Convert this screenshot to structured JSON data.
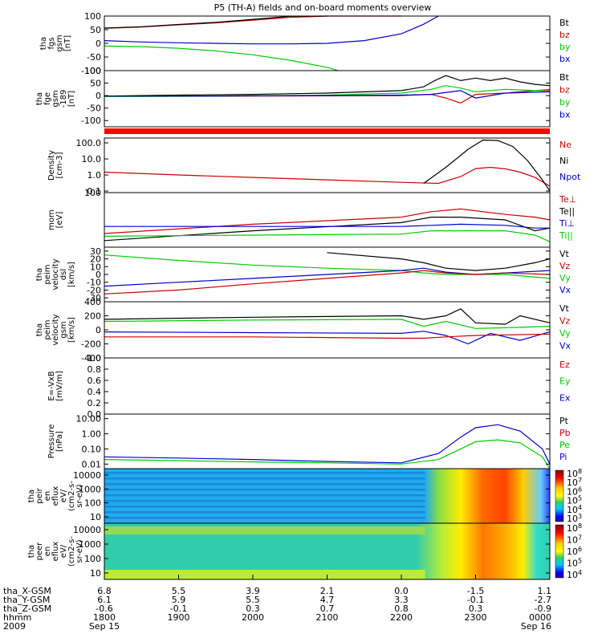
{
  "title": "P5 (TH-A) fields and on-board moments overview",
  "colors": {
    "black": "#000000",
    "red": "#cc0000",
    "green": "#00cc00",
    "blue": "#0000cc",
    "bright_red": "#ff0000"
  },
  "chart_data": [
    {
      "type": "line",
      "name": "fgs-gsm",
      "ylabel_lines": [
        "tha",
        "fgs",
        "gsm",
        "[nT]"
      ],
      "yticks": [
        "100",
        "50",
        "0",
        "-50",
        "-100"
      ],
      "ylim": [
        -100,
        100
      ],
      "legend": [
        {
          "label": "Bt",
          "color": "#000000"
        },
        {
          "label": "bz",
          "color": "#cc0000"
        },
        {
          "label": "by",
          "color": "#00cc00"
        },
        {
          "label": "bx",
          "color": "#0000cc"
        }
      ],
      "series": [
        {
          "color": "#cc0000",
          "x": [
            18.0,
            18.5,
            19.0,
            19.5,
            20.0,
            20.5,
            21.0,
            21.5,
            22.0
          ],
          "y": [
            55,
            60,
            68,
            75,
            85,
            95,
            108,
            125,
            150
          ]
        },
        {
          "color": "#000000",
          "x": [
            18.0,
            18.5,
            19.0,
            19.5,
            20.0,
            20.5,
            21.0
          ],
          "y": [
            56,
            61,
            69,
            77,
            88,
            99,
            112
          ]
        },
        {
          "color": "#0000cc",
          "x": [
            18.0,
            18.5,
            19.0,
            19.5,
            20.0,
            20.5,
            21.0,
            21.5,
            22.0,
            22.3,
            22.5
          ],
          "y": [
            10,
            5,
            2,
            0,
            -2,
            -2,
            0,
            10,
            35,
            70,
            110
          ]
        },
        {
          "color": "#00cc00",
          "x": [
            18.0,
            18.5,
            19.0,
            19.5,
            20.0,
            20.5,
            21.0,
            21.15
          ],
          "y": [
            -10,
            -12,
            -18,
            -28,
            -42,
            -62,
            -88,
            -100
          ]
        }
      ]
    },
    {
      "type": "line",
      "name": "fge-gsm",
      "ylabel_lines": [
        "tha",
        "fge",
        "gsm",
        "-189",
        "[nT]"
      ],
      "yticks": [
        "100",
        "50",
        "0",
        "-50",
        "-100"
      ],
      "ylim": [
        -125,
        100
      ],
      "legend": [
        {
          "label": "Bt",
          "color": "#000000"
        },
        {
          "label": "bz",
          "color": "#cc0000"
        },
        {
          "label": "by",
          "color": "#00cc00"
        },
        {
          "label": "bx",
          "color": "#0000cc"
        }
      ],
      "series": [
        {
          "color": "#000000",
          "x": [
            18.0,
            19.0,
            20.0,
            21.0,
            22.0,
            22.3,
            22.45,
            22.6,
            22.8,
            23.0,
            23.2,
            23.4,
            23.6,
            23.8,
            24.0
          ],
          "y": [
            -2,
            2,
            5,
            10,
            20,
            35,
            60,
            80,
            60,
            70,
            60,
            70,
            55,
            45,
            40
          ]
        },
        {
          "color": "#cc0000",
          "x": [
            18.0,
            19.0,
            20.0,
            21.0,
            22.0,
            22.4,
            22.6,
            22.8,
            23.0,
            23.4,
            23.8,
            24.0
          ],
          "y": [
            -3,
            -3,
            -2,
            -1,
            0,
            5,
            -10,
            -30,
            5,
            10,
            20,
            20
          ]
        },
        {
          "color": "#00cc00",
          "x": [
            18.0,
            19.0,
            20.0,
            21.0,
            22.0,
            22.4,
            22.6,
            22.8,
            23.0,
            23.4,
            23.8,
            24.0
          ],
          "y": [
            -4,
            -3,
            -1,
            2,
            10,
            25,
            40,
            30,
            15,
            25,
            20,
            25
          ]
        },
        {
          "color": "#0000cc",
          "x": [
            18.0,
            19.0,
            20.0,
            21.0,
            22.0,
            22.4,
            22.8,
            23.0,
            23.4,
            24.0
          ],
          "y": [
            -2,
            -2,
            -1,
            0,
            2,
            5,
            20,
            -10,
            10,
            15
          ]
        }
      ]
    },
    {
      "type": "line",
      "name": "density",
      "yscale": "log",
      "ylabel_lines": [
        "Density",
        "[cm-3]"
      ],
      "yticks": [
        "100.0",
        "10.0",
        "1.0",
        "0.1"
      ],
      "ylim": [
        0.08,
        200
      ],
      "legend": [
        {
          "label": "Ne",
          "color": "#cc0000"
        },
        {
          "label": "Ni",
          "color": "#000000"
        },
        {
          "label": "Npot",
          "color": "#0000cc"
        }
      ],
      "series": [
        {
          "color": "#cc0000",
          "x": [
            18.0,
            19.0,
            20.0,
            21.0,
            22.0,
            22.5,
            22.8,
            23.0,
            23.2,
            23.4,
            23.6,
            23.8,
            24.0
          ],
          "y": [
            1.5,
            1.0,
            0.7,
            0.5,
            0.35,
            0.3,
            0.8,
            2.5,
            3.0,
            2.4,
            1.5,
            0.7,
            0.2
          ]
        },
        {
          "color": "#000000",
          "x": [
            22.3,
            22.6,
            22.9,
            23.1,
            23.3,
            23.5,
            23.7,
            23.9,
            24.0
          ],
          "y": [
            0.3,
            3,
            40,
            150,
            140,
            60,
            8,
            0.5,
            0.1
          ]
        }
      ]
    },
    {
      "type": "line",
      "name": "mom-temperature",
      "ylabel_lines": [
        "mom",
        "[eV]"
      ],
      "yticks": [
        "100"
      ],
      "ylim": [
        0,
        1
      ],
      "legend": [
        {
          "label": "Te⊥",
          "color": "#cc0000"
        },
        {
          "label": "Te||",
          "color": "#000000"
        },
        {
          "label": "Ti⊥",
          "color": "#0000cc"
        },
        {
          "label": "Ti||",
          "color": "#00cc00"
        }
      ],
      "series": [
        {
          "color": "#cc0000",
          "x": [
            18.0,
            20.0,
            22.0,
            22.4,
            22.8,
            23.4,
            23.8,
            24.0
          ],
          "y": [
            0.25,
            0.42,
            0.55,
            0.65,
            0.7,
            0.6,
            0.55,
            0.5
          ]
        },
        {
          "color": "#000000",
          "x": [
            18.0,
            20.0,
            22.0,
            22.4,
            22.8,
            23.4,
            23.8,
            24.0
          ],
          "y": [
            0.12,
            0.3,
            0.45,
            0.55,
            0.55,
            0.5,
            0.3,
            0.35
          ]
        },
        {
          "color": "#0000cc",
          "x": [
            18.0,
            20.0,
            22.0,
            22.4,
            22.8,
            23.4,
            23.8,
            24.0
          ],
          "y": [
            0.38,
            0.38,
            0.38,
            0.4,
            0.42,
            0.4,
            0.35,
            0.35
          ]
        },
        {
          "color": "#00cc00",
          "x": [
            18.0,
            20.0,
            22.0,
            22.4,
            22.8,
            23.4,
            23.8,
            24.0
          ],
          "y": [
            0.2,
            0.22,
            0.24,
            0.3,
            0.3,
            0.3,
            0.22,
            0.1
          ]
        }
      ]
    },
    {
      "type": "line",
      "name": "peim-velocity-dsl",
      "ylabel_lines": [
        "tha",
        "peim",
        "velocity",
        "dsl",
        "[km/s]"
      ],
      "yticks": [
        "30",
        "20",
        "10",
        "0",
        "-10",
        "-20",
        "-30"
      ],
      "ylim": [
        -35,
        35
      ],
      "legend": [
        {
          "label": "Vt",
          "color": "#000000"
        },
        {
          "label": "Vz",
          "color": "#cc0000"
        },
        {
          "label": "Vy",
          "color": "#00cc00"
        },
        {
          "label": "Vx",
          "color": "#0000cc"
        }
      ],
      "series": [
        {
          "color": "#000000",
          "x": [
            21.0,
            22.0,
            22.3,
            22.6,
            23.0,
            23.4,
            23.8,
            24.0
          ],
          "y": [
            28,
            20,
            15,
            8,
            5,
            8,
            15,
            20
          ]
        },
        {
          "color": "#00cc00",
          "x": [
            18.0,
            19.0,
            20.0,
            21.0,
            22.0,
            22.3,
            22.6,
            23.0,
            23.4,
            24.0
          ],
          "y": [
            25,
            18,
            12,
            8,
            5,
            2,
            0,
            0,
            0,
            -5
          ]
        },
        {
          "color": "#0000cc",
          "x": [
            18.0,
            19.0,
            20.0,
            21.0,
            22.0,
            22.3,
            22.6,
            23.0,
            23.4,
            24.0
          ],
          "y": [
            -15,
            -10,
            -5,
            0,
            5,
            8,
            3,
            0,
            2,
            5
          ]
        },
        {
          "color": "#cc0000",
          "x": [
            18.0,
            19.0,
            20.0,
            21.0,
            22.0,
            22.3,
            22.6,
            23.0,
            23.4,
            24.0
          ],
          "y": [
            -25,
            -20,
            -12,
            -5,
            2,
            5,
            2,
            0,
            2,
            0
          ]
        }
      ]
    },
    {
      "type": "line",
      "name": "peim-velocity-gsm",
      "ylabel_lines": [
        "tha",
        "peim",
        "velocity",
        "gsm",
        "[km/s]"
      ],
      "yticks": [
        "400",
        "200",
        "0",
        "-200",
        "-400"
      ],
      "ylim": [
        -400,
        400
      ],
      "legend": [
        {
          "label": "Vt",
          "color": "#000000"
        },
        {
          "label": "Vz",
          "color": "#cc0000"
        },
        {
          "label": "Vy",
          "color": "#00cc00"
        },
        {
          "label": "Vx",
          "color": "#0000cc"
        }
      ],
      "series": [
        {
          "color": "#000000",
          "x": [
            18.0,
            20.0,
            22.0,
            22.3,
            22.6,
            22.8,
            23.0,
            23.4,
            23.6,
            24.0
          ],
          "y": [
            150,
            180,
            200,
            150,
            200,
            300,
            100,
            80,
            200,
            100
          ]
        },
        {
          "color": "#00cc00",
          "x": [
            18.0,
            20.0,
            22.0,
            22.3,
            22.6,
            23.0,
            23.4,
            24.0
          ],
          "y": [
            120,
            140,
            150,
            50,
            120,
            20,
            30,
            50
          ]
        },
        {
          "color": "#0000cc",
          "x": [
            18.0,
            20.0,
            22.0,
            22.3,
            22.6,
            22.9,
            23.2,
            23.6,
            24.0
          ],
          "y": [
            -30,
            -40,
            -50,
            -20,
            -80,
            -200,
            -50,
            -150,
            -30
          ]
        },
        {
          "color": "#cc0000",
          "x": [
            18.0,
            20.0,
            22.0,
            22.3,
            22.6,
            23.0,
            24.0
          ],
          "y": [
            -100,
            -100,
            -120,
            -120,
            -100,
            -80,
            -60
          ]
        }
      ]
    },
    {
      "type": "line",
      "name": "e-field",
      "ylabel_lines": [
        "E=-VxB",
        "[mV/m]"
      ],
      "yticks": [
        "1.0",
        "0.8",
        "0.6",
        "0.4",
        "0.2",
        "0.0"
      ],
      "ylim": [
        0,
        1
      ],
      "legend": [
        {
          "label": "Ez",
          "color": "#cc0000"
        },
        {
          "label": "Ey",
          "color": "#00cc00"
        },
        {
          "label": "Ex",
          "color": "#0000cc"
        }
      ],
      "series": []
    },
    {
      "type": "line",
      "name": "pressure",
      "yscale": "log",
      "ylabel_lines": [
        "Pressure",
        "[nPa]"
      ],
      "yticks": [
        "10.00",
        "1.00",
        "0.10",
        "0.01"
      ],
      "ylim": [
        0.005,
        20
      ],
      "legend": [
        {
          "label": "Pt",
          "color": "#000000"
        },
        {
          "label": "Pb",
          "color": "#cc0000"
        },
        {
          "label": "Pe",
          "color": "#00cc00"
        },
        {
          "label": "Pi",
          "color": "#0000cc"
        }
      ],
      "series": [
        {
          "color": "#0000cc",
          "x": [
            18.0,
            19.0,
            20.0,
            21.0,
            22.0,
            22.5,
            22.8,
            23.0,
            23.3,
            23.6,
            23.9,
            24.0
          ],
          "y": [
            0.03,
            0.025,
            0.02,
            0.015,
            0.012,
            0.05,
            0.6,
            2.5,
            4,
            1.5,
            0.1,
            0.01
          ]
        },
        {
          "color": "#00cc00",
          "x": [
            18.0,
            19.0,
            20.0,
            21.0,
            22.0,
            22.5,
            22.8,
            23.0,
            23.3,
            23.6,
            23.9,
            24.0
          ],
          "y": [
            0.02,
            0.017,
            0.014,
            0.012,
            0.01,
            0.02,
            0.1,
            0.3,
            0.4,
            0.25,
            0.03,
            0.005
          ]
        }
      ]
    },
    {
      "type": "heatmap",
      "name": "peir-en-eflux",
      "ylabel_lines": [
        "tha",
        "peir",
        "en",
        "eflux",
        "eV/",
        "(cm2-s-",
        "sr-eV)"
      ],
      "yticks": [
        "10000",
        "1000",
        "100",
        "10"
      ],
      "colorbar_labels": [
        "10^8",
        "10^7",
        "10^6",
        "10^5",
        "10^4",
        "10^3"
      ]
    },
    {
      "type": "heatmap",
      "name": "peer-en-eflux",
      "ylabel_lines": [
        "tha",
        "peer",
        "en",
        "eflux",
        "eV/",
        "(cm2-s-",
        "sr-eV)"
      ],
      "yticks": [
        "10000",
        "1000",
        "100",
        "10"
      ],
      "colorbar_labels": [
        "10^8",
        "10^7",
        "10^6",
        "10^5",
        "10^4"
      ]
    }
  ],
  "xaxis": {
    "row_labels": [
      "tha_X-GSM",
      "tha_Y-GSM",
      "tha_Z-GSM",
      "hhmm",
      "2009"
    ],
    "columns": [
      {
        "x": "6.8",
        "y": "6.1",
        "z": "-0.6",
        "hhmm": "1800",
        "date": "Sep 15"
      },
      {
        "x": "5.5",
        "y": "5.9",
        "z": "-0.1",
        "hhmm": "1900",
        "date": ""
      },
      {
        "x": "3.9",
        "y": "5.5",
        "z": "0.3",
        "hhmm": "2000",
        "date": ""
      },
      {
        "x": "2.1",
        "y": "4.7",
        "z": "0.7",
        "hhmm": "2100",
        "date": ""
      },
      {
        "x": "0.0",
        "y": "3.3",
        "z": "0.8",
        "hhmm": "2200",
        "date": ""
      },
      {
        "x": "-1.5",
        "y": "-0.1",
        "z": "0.3",
        "hhmm": "2300",
        "date": ""
      },
      {
        "x": "1.1",
        "y": "-2.7",
        "z": "-0.9",
        "hhmm": "0000",
        "date": "Sep 16"
      }
    ]
  }
}
